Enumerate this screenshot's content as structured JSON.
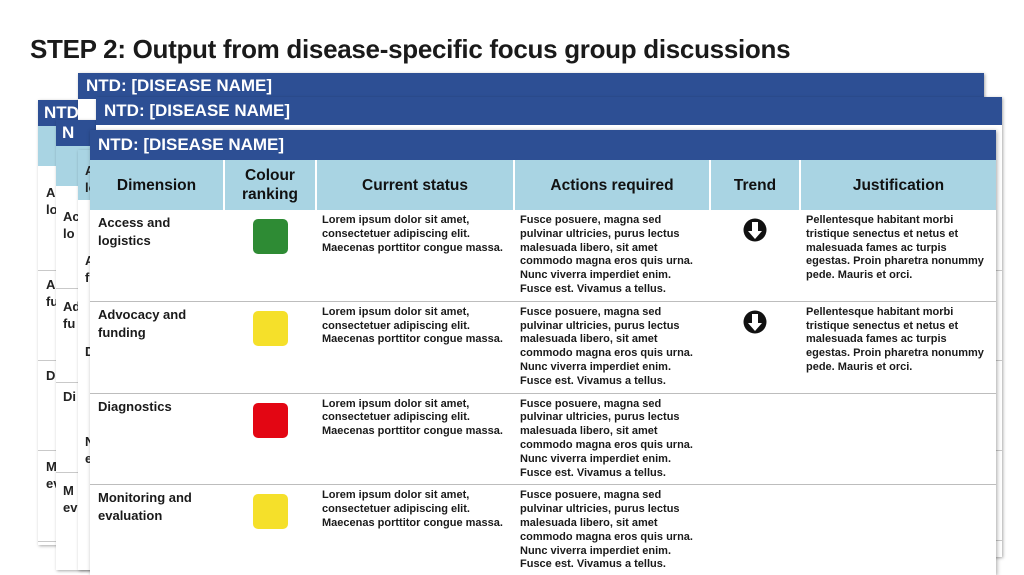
{
  "title": "STEP 2: Output from disease-specific focus group discussions",
  "card_header": "NTD:  [DISEASE NAME]",
  "ghost_left": {
    "a1": "A",
    "a2": "lo",
    "a3": "A",
    "a4": "fu",
    "a5": "D",
    "a6": "M",
    "a7": "ev"
  },
  "ghost_mid": {
    "b1": "Ac",
    "b2": "lo",
    "b3": "Ad",
    "b4": "fu",
    "b5": "Di",
    "b6": "M",
    "b7": "ev"
  },
  "ghost_inner": {
    "c1": "A",
    "c2": "lo",
    "c3": "A",
    "c4": "f",
    "c5": "D",
    "c6": "N",
    "c7": "e"
  },
  "table": {
    "headers": {
      "dimension": "Dimension",
      "colour_ranking": "Colour ranking",
      "current_status": "Current status",
      "actions_required": "Actions required",
      "trend": "Trend",
      "justification": "Justification"
    },
    "rows": [
      {
        "dimension": "Access and logistics",
        "colour": "#2e8b34",
        "current_status": "Lorem ipsum dolor sit amet, consectetuer adipiscing elit. Maecenas porttitor congue massa.",
        "actions_required": "Fusce posuere, magna sed pulvinar ultricies, purus lectus malesuada libero, sit amet commodo magna eros quis urna. Nunc viverra imperdiet enim. Fusce est. Vivamus a tellus.",
        "trend": "down-arrow-icon",
        "justification": "Pellentesque habitant morbi tristique senectus et netus et malesuada fames ac turpis egestas. Proin pharetra nonummy pede. Mauris et orci."
      },
      {
        "dimension": "Advocacy and funding",
        "colour": "#f5e02a",
        "current_status": "Lorem ipsum dolor sit amet, consectetuer adipiscing elit. Maecenas porttitor congue massa.",
        "actions_required": "Fusce posuere, magna sed pulvinar ultricies, purus lectus malesuada libero, sit amet commodo magna eros quis urna. Nunc viverra imperdiet enim. Fusce est. Vivamus a tellus.",
        "trend": "down-arrow-icon",
        "justification": "Pellentesque habitant morbi tristique senectus et netus et malesuada fames ac turpis egestas. Proin pharetra nonummy pede. Mauris et orci."
      },
      {
        "dimension": "Diagnostics",
        "colour": "#e30613",
        "current_status": "Lorem ipsum dolor sit amet, consectetuer adipiscing elit. Maecenas porttitor congue massa.",
        "actions_required": "Fusce posuere, magna sed pulvinar ultricies, purus lectus malesuada libero, sit amet commodo magna eros quis urna. Nunc viverra imperdiet enim. Fusce est. Vivamus a tellus.",
        "trend": "",
        "justification": ""
      },
      {
        "dimension": "Monitoring and evaluation",
        "colour": "#f5e02a",
        "current_status": "Lorem ipsum dolor sit amet, consectetuer adipiscing elit. Maecenas porttitor congue massa.",
        "actions_required": "Fusce posuere, magna sed pulvinar ultricies, purus lectus malesuada libero, sit amet commodo magna eros quis urna. Nunc viverra imperdiet enim. Fusce est. Vivamus a tellus.",
        "trend": "",
        "justification": ""
      }
    ]
  }
}
